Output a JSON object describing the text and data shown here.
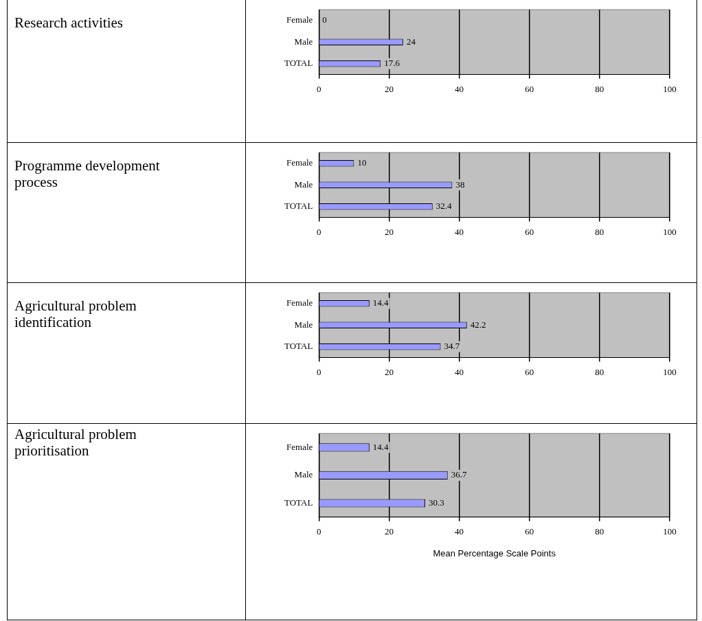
{
  "chart_data": [
    {
      "type": "bar",
      "orientation": "horizontal",
      "ylabel": "Research activities",
      "categories": [
        "Female",
        "Male",
        "TOTAL"
      ],
      "values": [
        0,
        24,
        17.6
      ],
      "color": "#9999ff",
      "xlim": [
        0,
        100
      ],
      "xticks": [
        0,
        20,
        40,
        60,
        80,
        100
      ],
      "grid": "x",
      "data_labels": true
    },
    {
      "type": "bar",
      "orientation": "horizontal",
      "ylabel": "Programme development process",
      "categories": [
        "Female",
        "Male",
        "TOTAL"
      ],
      "values": [
        10,
        38,
        32.4
      ],
      "color": "#9999ff",
      "xlim": [
        0,
        100
      ],
      "xticks": [
        0,
        20,
        40,
        60,
        80,
        100
      ],
      "grid": "x",
      "data_labels": true
    },
    {
      "type": "bar",
      "orientation": "horizontal",
      "ylabel": "Agricultural problem identification",
      "categories": [
        "Female",
        "Male",
        "TOTAL"
      ],
      "values": [
        14.4,
        42.2,
        34.7
      ],
      "color": "#9999ff",
      "xlim": [
        0,
        100
      ],
      "xticks": [
        0,
        20,
        40,
        60,
        80,
        100
      ],
      "grid": "x",
      "data_labels": true
    },
    {
      "type": "bar",
      "orientation": "horizontal",
      "ylabel": "Agricultural problem prioritisation",
      "xlabel": "Mean Percentage Scale Points",
      "categories": [
        "Female",
        "Male",
        "TOTAL"
      ],
      "values": [
        14.4,
        36.7,
        30.3
      ],
      "color": "#9999ff",
      "xlim": [
        0,
        100
      ],
      "xticks": [
        0,
        20,
        40,
        60,
        80,
        100
      ],
      "grid": "x",
      "data_labels": true
    }
  ]
}
